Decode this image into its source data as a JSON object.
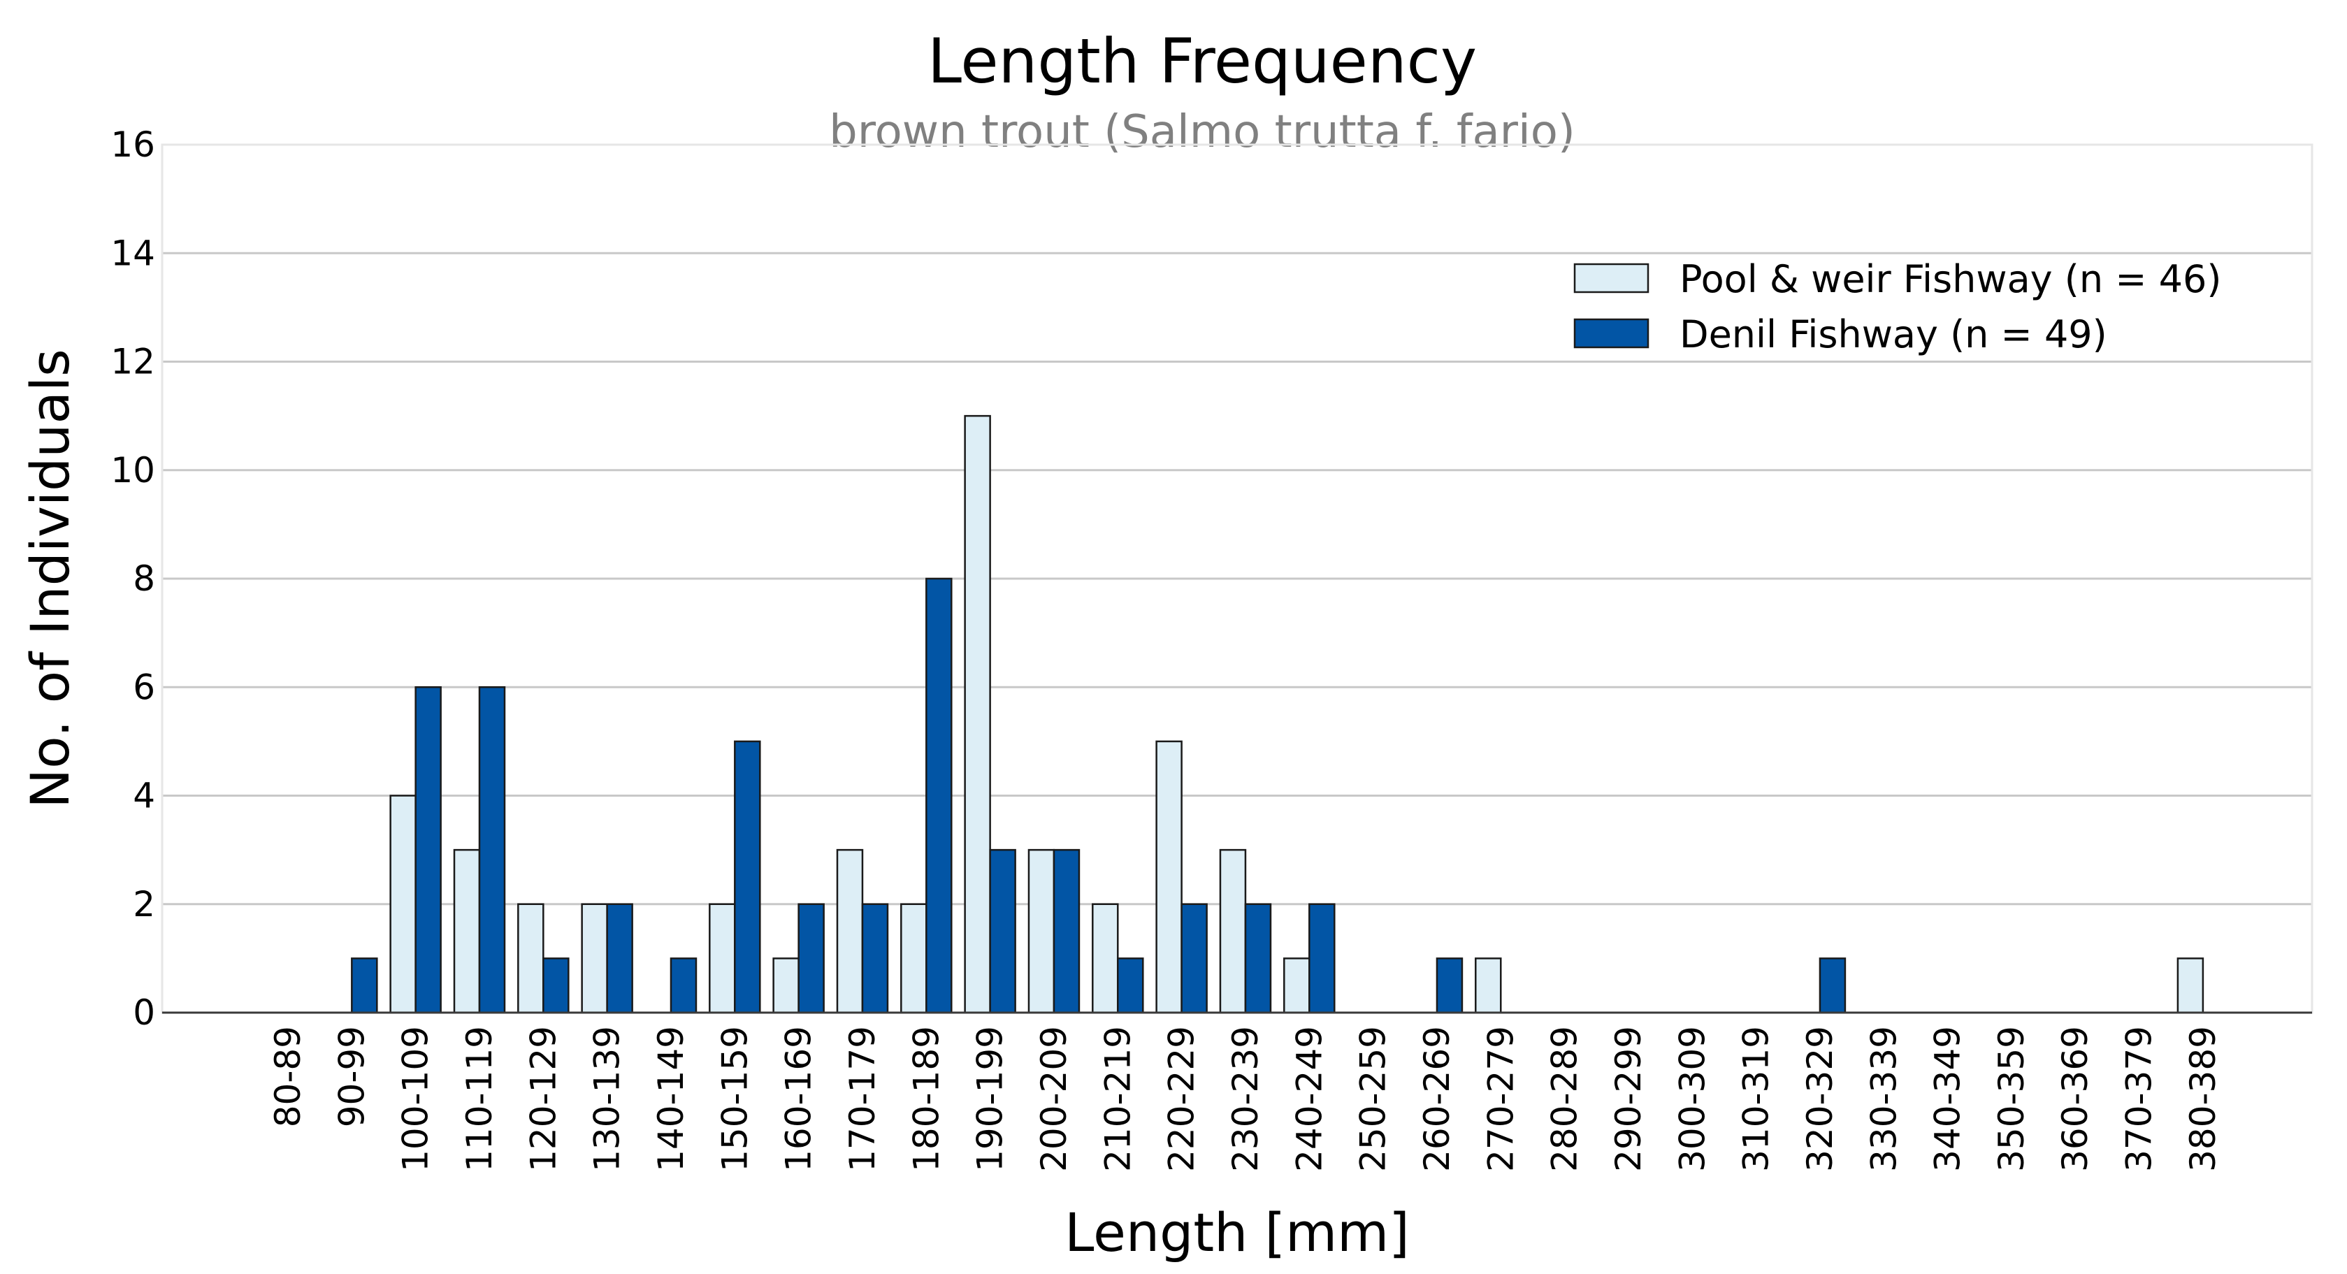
{
  "chart_data": {
    "type": "bar",
    "title": "Length Frequency",
    "subtitle": "brown trout (Salmo trutta f. fario)",
    "xlabel": "Length [mm]",
    "ylabel": "No. of Individuals",
    "ylim": [
      0,
      16
    ],
    "yticks": [
      0,
      2,
      4,
      6,
      8,
      10,
      12,
      14,
      16
    ],
    "grid": "horizontal",
    "legend_position": "top-right",
    "categories": [
      "80-89",
      "90-99",
      "100-109",
      "110-119",
      "120-129",
      "130-139",
      "140-149",
      "150-159",
      "160-169",
      "170-179",
      "180-189",
      "190-199",
      "200-209",
      "210-219",
      "220-229",
      "230-239",
      "240-249",
      "250-259",
      "260-269",
      "270-279",
      "280-289",
      "290-299",
      "300-309",
      "310-319",
      "320-329",
      "330-339",
      "340-349",
      "350-359",
      "360-369",
      "370-379",
      "380-389"
    ],
    "series": [
      {
        "name": "Pool & weir Fishway (n = 46)",
        "color": "#ddeef6",
        "values": [
          0,
          0,
          4,
          3,
          2,
          2,
          0,
          2,
          1,
          3,
          2,
          11,
          3,
          2,
          5,
          3,
          1,
          0,
          0,
          1,
          0,
          0,
          0,
          0,
          0,
          0,
          0,
          0,
          0,
          0,
          1
        ]
      },
      {
        "name": "Denil Fishway (n = 49)",
        "color": "#0255a5",
        "values": [
          0,
          1,
          6,
          6,
          1,
          2,
          1,
          5,
          2,
          2,
          8,
          3,
          3,
          1,
          2,
          2,
          2,
          0,
          1,
          0,
          0,
          0,
          0,
          0,
          1,
          0,
          0,
          0,
          0,
          0,
          0
        ]
      }
    ]
  }
}
